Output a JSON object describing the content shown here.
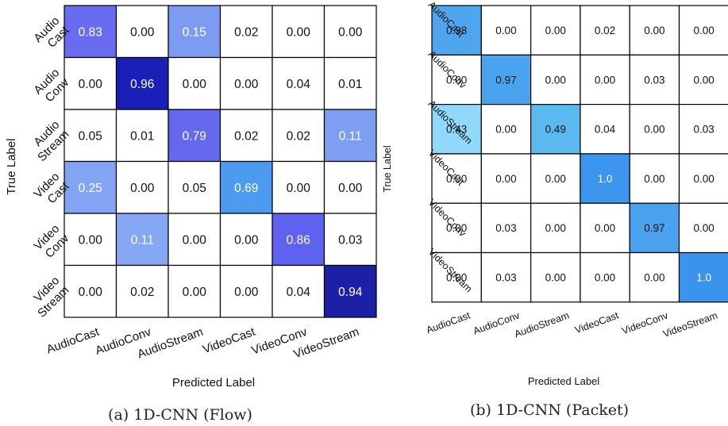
{
  "chart_data": [
    {
      "type": "heatmap",
      "caption": "(a) 1D-CNN (Flow)",
      "xlabel": "Predicted Label",
      "ylabel": "True Label",
      "x_tick_labels": [
        "AudioCast",
        "AudioConv",
        "AudioStream",
        "VideoCast",
        "VideoConv",
        "VideoStream"
      ],
      "y_tick_labels": [
        [
          "Audio",
          "Cast"
        ],
        [
          "Audio",
          "Conv"
        ],
        [
          "Audio",
          "Stream"
        ],
        [
          "Video",
          "Cast"
        ],
        [
          "Video",
          "Conv"
        ],
        [
          "Video",
          "Stream"
        ]
      ],
      "values": [
        [
          "0.83",
          "0.00",
          "0.15",
          "0.02",
          "0.00",
          "0.00"
        ],
        [
          "0.00",
          "0.96",
          "0.00",
          "0.00",
          "0.04",
          "0.01"
        ],
        [
          "0.05",
          "0.01",
          "0.79",
          "0.02",
          "0.02",
          "0.11"
        ],
        [
          "0.25",
          "0.00",
          "0.05",
          "0.69",
          "0.00",
          "0.00"
        ],
        [
          "0.00",
          "0.11",
          "0.00",
          "0.00",
          "0.86",
          "0.03"
        ],
        [
          "0.00",
          "0.02",
          "0.00",
          "0.00",
          "0.04",
          "0.94"
        ]
      ],
      "colors": [
        [
          "#6a6cf0",
          null,
          "#7d9cf1",
          null,
          null,
          null
        ],
        [
          null,
          "#1a1fb8",
          null,
          null,
          null,
          null
        ],
        [
          null,
          null,
          "#6567ee",
          null,
          null,
          "#7d9ef1"
        ],
        [
          "#82a4f3",
          null,
          null,
          "#4d9bf0",
          null,
          null
        ],
        [
          null,
          "#86a8f4",
          null,
          null,
          "#5e62ee",
          null
        ],
        [
          null,
          null,
          null,
          null,
          null,
          "#1b20a6"
        ]
      ],
      "light_text_cells": [
        [
          0,
          0
        ],
        [
          0,
          2
        ],
        [
          1,
          1
        ],
        [
          2,
          2
        ],
        [
          2,
          5
        ],
        [
          3,
          0
        ],
        [
          3,
          3
        ],
        [
          4,
          1
        ],
        [
          4,
          4
        ],
        [
          5,
          5
        ]
      ]
    },
    {
      "type": "heatmap",
      "caption": "(b) 1D-CNN (Packet)",
      "xlabel": "Predicted Label",
      "ylabel": "True Label",
      "x_tick_labels": [
        "AudioCast",
        "AudioConv",
        "AudioStream",
        "VideoCast",
        "VideoConv",
        "VideoStream"
      ],
      "y_tick_labels": [
        "AudioCast",
        "AudioConv",
        "AudioStream",
        "VideoCast",
        "VideoConv",
        "VideoStream"
      ],
      "values": [
        [
          "0.98",
          "0.00",
          "0.00",
          "0.02",
          "0.00",
          "0.00"
        ],
        [
          "0.00",
          "0.97",
          "0.00",
          "0.00",
          "0.03",
          "0.00"
        ],
        [
          "0.43",
          "0.00",
          "0.49",
          "0.04",
          "0.00",
          "0.03"
        ],
        [
          "0.00",
          "0.00",
          "0.00",
          "1.0",
          "0.00",
          "0.00"
        ],
        [
          "0.00",
          "0.03",
          "0.00",
          "0.00",
          "0.97",
          "0.00"
        ],
        [
          "0.00",
          "0.03",
          "0.00",
          "0.00",
          "0.00",
          "1.0"
        ]
      ],
      "colors": [
        [
          "#4fa6ee",
          null,
          null,
          null,
          null,
          null
        ],
        [
          null,
          "#4aa3ef",
          null,
          null,
          null,
          null
        ],
        [
          "#90d9fb",
          null,
          "#5ab9ef",
          null,
          null,
          null
        ],
        [
          null,
          null,
          null,
          "#3d96ee",
          null,
          null
        ],
        [
          null,
          null,
          null,
          null,
          "#4aa1ee",
          null
        ],
        [
          null,
          null,
          null,
          null,
          null,
          "#3a93ec"
        ]
      ],
      "light_text_cells": [
        [
          3,
          3
        ],
        [
          5,
          5
        ]
      ]
    }
  ]
}
